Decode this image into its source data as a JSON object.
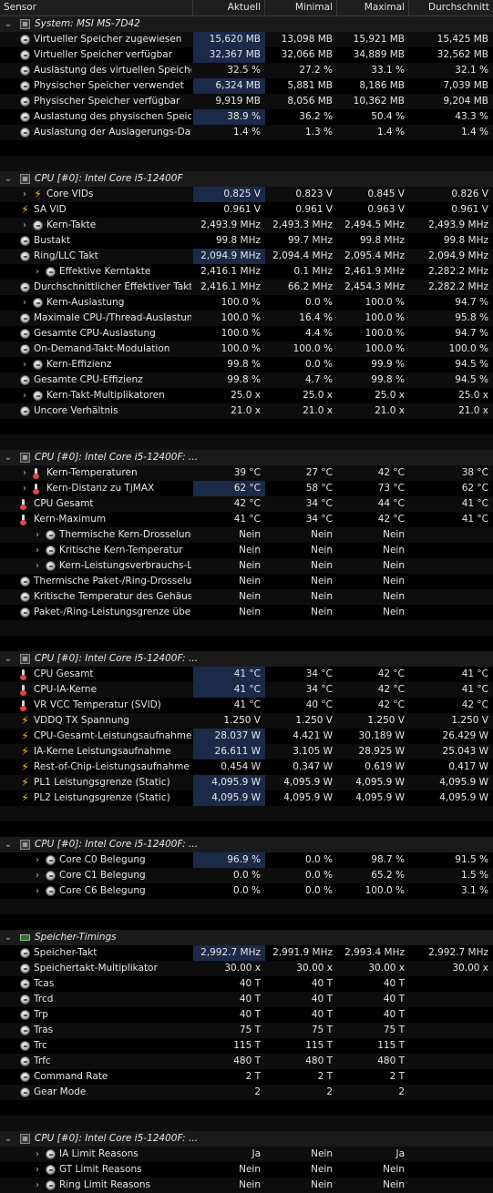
{
  "headers": [
    "Sensor",
    "Aktuell",
    "Minimal",
    "Maximal",
    "Durchschnitt"
  ],
  "rows": [
    {
      "t": "group",
      "name": "System: MSI MS-7D42",
      "icon": "chip"
    },
    {
      "t": "item",
      "name": "Virtueller Speicher zugewiesen",
      "icon": "circle",
      "d": 0,
      "v": [
        "15,620 MB",
        "13,098 MB",
        "15,921 MB",
        "15,425 MB"
      ],
      "hl": true
    },
    {
      "t": "item",
      "name": "Virtueller Speicher verfügbar",
      "icon": "circle",
      "d": 0,
      "v": [
        "32,367 MB",
        "32,066 MB",
        "34,889 MB",
        "32,562 MB"
      ],
      "hl": true
    },
    {
      "t": "item",
      "name": "Auslastung des virtuellen Speichers",
      "icon": "circle",
      "d": 0,
      "v": [
        "32.5 %",
        "27.2 %",
        "33.1 %",
        "32.1 %"
      ]
    },
    {
      "t": "item",
      "name": "Physischer Speicher verwendet",
      "icon": "circle",
      "d": 0,
      "v": [
        "6,324 MB",
        "5,881 MB",
        "8,186 MB",
        "7,039 MB"
      ],
      "hl": true
    },
    {
      "t": "item",
      "name": "Physischer Speicher verfügbar",
      "icon": "circle",
      "d": 0,
      "v": [
        "9,919 MB",
        "8,056 MB",
        "10,362 MB",
        "9,204 MB"
      ]
    },
    {
      "t": "item",
      "name": "Auslastung des physischen Speic...",
      "icon": "circle",
      "d": 0,
      "v": [
        "38.9 %",
        "36.2 %",
        "50.4 %",
        "43.3 %"
      ],
      "hl": true
    },
    {
      "t": "item",
      "name": "Auslastung der Auslagerungs-Datei",
      "icon": "circle",
      "d": 0,
      "v": [
        "1.4 %",
        "1.3 %",
        "1.4 %",
        "1.4 %"
      ]
    },
    {
      "t": "blank"
    },
    {
      "t": "blank"
    },
    {
      "t": "group",
      "name": "CPU [#0]: Intel Core i5-12400F",
      "icon": "chip"
    },
    {
      "t": "item",
      "name": "Core VIDs",
      "icon": "bolt",
      "d": 0,
      "exp": true,
      "v": [
        "0.825 V",
        "0.823 V",
        "0.845 V",
        "0.826 V"
      ],
      "hl": true
    },
    {
      "t": "item",
      "name": "SA VID",
      "icon": "bolt",
      "d": 0,
      "v": [
        "0.961 V",
        "0.961 V",
        "0.963 V",
        "0.961 V"
      ]
    },
    {
      "t": "item",
      "name": "Kern-Takte",
      "icon": "circle",
      "d": 0,
      "exp": true,
      "v": [
        "2,493.9 MHz",
        "2,493.3 MHz",
        "2,494.5 MHz",
        "2,493.9 MHz"
      ]
    },
    {
      "t": "item",
      "name": "Bustakt",
      "icon": "circle",
      "d": 0,
      "v": [
        "99.8 MHz",
        "99.7 MHz",
        "99.8 MHz",
        "99.8 MHz"
      ]
    },
    {
      "t": "item",
      "name": "Ring/LLC Takt",
      "icon": "circle",
      "d": 0,
      "v": [
        "2,094.9 MHz",
        "2,094.4 MHz",
        "2,095.4 MHz",
        "2,094.9 MHz"
      ],
      "hl": true
    },
    {
      "t": "item",
      "name": "Effektive Kerntakte",
      "icon": "circle",
      "d": 1,
      "exp": true,
      "v": [
        "2,416.1 MHz",
        "0.1 MHz",
        "2,461.9 MHz",
        "2,282.2 MHz"
      ]
    },
    {
      "t": "item",
      "name": "Durchschnittlicher Effektiver Takt",
      "icon": "circle",
      "d": 0,
      "v": [
        "2,416.1 MHz",
        "66.2 MHz",
        "2,454.3 MHz",
        "2,282.2 MHz"
      ]
    },
    {
      "t": "item",
      "name": "Kern-Auslastung",
      "icon": "circle",
      "d": 0,
      "exp": true,
      "v": [
        "100.0 %",
        "0.0 %",
        "100.0 %",
        "94.7 %"
      ]
    },
    {
      "t": "item",
      "name": "Maximale CPU-/Thread-Auslastung",
      "icon": "circle",
      "d": 0,
      "v": [
        "100.0 %",
        "16.4 %",
        "100.0 %",
        "95.8 %"
      ]
    },
    {
      "t": "item",
      "name": "Gesamte CPU-Auslastung",
      "icon": "circle",
      "d": 0,
      "v": [
        "100.0 %",
        "4.4 %",
        "100.0 %",
        "94.7 %"
      ]
    },
    {
      "t": "item",
      "name": "On-Demand-Takt-Modulation",
      "icon": "circle",
      "d": 0,
      "v": [
        "100.0 %",
        "100.0 %",
        "100.0 %",
        "100.0 %"
      ]
    },
    {
      "t": "item",
      "name": "Kern-Effizienz",
      "icon": "circle",
      "d": 0,
      "exp": true,
      "v": [
        "99.8 %",
        "0.0 %",
        "99.9 %",
        "94.5 %"
      ]
    },
    {
      "t": "item",
      "name": "Gesamte CPU-Effizienz",
      "icon": "circle",
      "d": 0,
      "v": [
        "99.8 %",
        "4.7 %",
        "99.8 %",
        "94.5 %"
      ]
    },
    {
      "t": "item",
      "name": "Kern-Takt-Multiplikatoren",
      "icon": "circle",
      "d": 0,
      "exp": true,
      "v": [
        "25.0 x",
        "25.0 x",
        "25.0 x",
        "25.0 x"
      ]
    },
    {
      "t": "item",
      "name": "Uncore Verhältnis",
      "icon": "circle",
      "d": 0,
      "v": [
        "21.0 x",
        "21.0 x",
        "21.0 x",
        "21.0 x"
      ]
    },
    {
      "t": "blank"
    },
    {
      "t": "blank"
    },
    {
      "t": "group",
      "name": "CPU [#0]: Intel Core i5-12400F: ...",
      "icon": "chip"
    },
    {
      "t": "item",
      "name": "Kern-Temperaturen",
      "icon": "therm",
      "d": 0,
      "exp": true,
      "v": [
        "39 °C",
        "27 °C",
        "42 °C",
        "38 °C"
      ]
    },
    {
      "t": "item",
      "name": "Kern-Distanz zu TjMAX",
      "icon": "therm",
      "d": 0,
      "exp": true,
      "v": [
        "62 °C",
        "58 °C",
        "73 °C",
        "62 °C"
      ],
      "hl": true
    },
    {
      "t": "item",
      "name": "CPU Gesamt",
      "icon": "therm",
      "d": 0,
      "v": [
        "42 °C",
        "34 °C",
        "44 °C",
        "41 °C"
      ]
    },
    {
      "t": "item",
      "name": "Kern-Maximum",
      "icon": "therm",
      "d": 0,
      "v": [
        "41 °C",
        "34 °C",
        "42 °C",
        "41 °C"
      ]
    },
    {
      "t": "item",
      "name": "Thermische Kern-Drosselung",
      "icon": "circle",
      "d": 1,
      "exp": true,
      "v": [
        "Nein",
        "Nein",
        "Nein",
        ""
      ]
    },
    {
      "t": "item",
      "name": "Kritische Kern-Temperatur",
      "icon": "circle",
      "d": 1,
      "exp": true,
      "v": [
        "Nein",
        "Nein",
        "Nein",
        ""
      ]
    },
    {
      "t": "item",
      "name": "Kern-Leistungsverbrauchs-Li...",
      "icon": "circle",
      "d": 1,
      "exp": true,
      "v": [
        "Nein",
        "Nein",
        "Nein",
        ""
      ]
    },
    {
      "t": "item",
      "name": "Thermische Paket-/Ring-Drosselung",
      "icon": "circle",
      "d": 0,
      "v": [
        "Nein",
        "Nein",
        "Nein",
        ""
      ]
    },
    {
      "t": "item",
      "name": "Kritische Temperatur des Gehäus...",
      "icon": "circle",
      "d": 0,
      "v": [
        "Nein",
        "Nein",
        "Nein",
        ""
      ]
    },
    {
      "t": "item",
      "name": "Paket-/Ring-Leistungsgrenze übe...",
      "icon": "circle",
      "d": 0,
      "v": [
        "Nein",
        "Nein",
        "Nein",
        ""
      ]
    },
    {
      "t": "blank"
    },
    {
      "t": "blank"
    },
    {
      "t": "group",
      "name": "CPU [#0]: Intel Core i5-12400F: ...",
      "icon": "chip"
    },
    {
      "t": "item",
      "name": "CPU Gesamt",
      "icon": "therm",
      "d": 0,
      "v": [
        "41 °C",
        "34 °C",
        "42 °C",
        "41 °C"
      ],
      "hl": true
    },
    {
      "t": "item",
      "name": "CPU-IA-Kerne",
      "icon": "therm",
      "d": 0,
      "v": [
        "41 °C",
        "34 °C",
        "42 °C",
        "41 °C"
      ],
      "hl": true
    },
    {
      "t": "item",
      "name": "VR VCC Temperatur (SVID)",
      "icon": "therm",
      "d": 0,
      "v": [
        "41 °C",
        "40 °C",
        "42 °C",
        "42 °C"
      ]
    },
    {
      "t": "item",
      "name": "VDDQ TX Spannung",
      "icon": "bolt",
      "d": 0,
      "v": [
        "1.250 V",
        "1.250 V",
        "1.250 V",
        "1.250 V"
      ]
    },
    {
      "t": "item",
      "name": "CPU-Gesamt-Leistungsaufnahme",
      "icon": "bolt",
      "d": 0,
      "v": [
        "28.037 W",
        "4.421 W",
        "30.189 W",
        "26.429 W"
      ],
      "hl": true
    },
    {
      "t": "item",
      "name": "IA-Kerne Leistungsaufnahme",
      "icon": "bolt",
      "d": 0,
      "v": [
        "26.611 W",
        "3.105 W",
        "28.925 W",
        "25.043 W"
      ],
      "hl": true
    },
    {
      "t": "item",
      "name": "Rest-of-Chip-Leistungsaufnahme",
      "icon": "bolt",
      "d": 0,
      "v": [
        "0.454 W",
        "0.347 W",
        "0.619 W",
        "0.417 W"
      ]
    },
    {
      "t": "item",
      "name": "PL1 Leistungsgrenze (Static)",
      "icon": "bolt",
      "d": 0,
      "v": [
        "4,095.9 W",
        "4,095.9 W",
        "4,095.9 W",
        "4,095.9 W"
      ],
      "hl": true
    },
    {
      "t": "item",
      "name": "PL2 Leistungsgrenze (Static)",
      "icon": "bolt",
      "d": 0,
      "v": [
        "4,095.9 W",
        "4,095.9 W",
        "4,095.9 W",
        "4,095.9 W"
      ],
      "hl": true
    },
    {
      "t": "blank"
    },
    {
      "t": "blank"
    },
    {
      "t": "group",
      "name": "CPU [#0]: Intel Core i5-12400F: ...",
      "icon": "chip"
    },
    {
      "t": "item",
      "name": "Core C0 Belegung",
      "icon": "circle",
      "d": 1,
      "exp": true,
      "v": [
        "96.9 %",
        "0.0 %",
        "98.7 %",
        "91.5 %"
      ],
      "hl": true
    },
    {
      "t": "item",
      "name": "Core C1 Belegung",
      "icon": "circle",
      "d": 1,
      "exp": true,
      "v": [
        "0.0 %",
        "0.0 %",
        "65.2 %",
        "1.5 %"
      ]
    },
    {
      "t": "item",
      "name": "Core C6 Belegung",
      "icon": "circle",
      "d": 1,
      "exp": true,
      "v": [
        "0.0 %",
        "0.0 %",
        "100.0 %",
        "3.1 %"
      ]
    },
    {
      "t": "blank"
    },
    {
      "t": "blank"
    },
    {
      "t": "group",
      "name": "Speicher-Timings",
      "icon": "ram"
    },
    {
      "t": "item",
      "name": "Speicher-Takt",
      "icon": "circle",
      "d": 0,
      "v": [
        "2,992.7 MHz",
        "2,991.9 MHz",
        "2,993.4 MHz",
        "2,992.7 MHz"
      ],
      "hl": true
    },
    {
      "t": "item",
      "name": "Speichertakt-Multiplikator",
      "icon": "circle",
      "d": 0,
      "v": [
        "30.00 x",
        "30.00 x",
        "30.00 x",
        "30.00 x"
      ]
    },
    {
      "t": "item",
      "name": "Tcas",
      "icon": "circle",
      "d": 0,
      "v": [
        "40 T",
        "40 T",
        "40 T",
        ""
      ]
    },
    {
      "t": "item",
      "name": "Trcd",
      "icon": "circle",
      "d": 0,
      "v": [
        "40 T",
        "40 T",
        "40 T",
        ""
      ]
    },
    {
      "t": "item",
      "name": "Trp",
      "icon": "circle",
      "d": 0,
      "v": [
        "40 T",
        "40 T",
        "40 T",
        ""
      ]
    },
    {
      "t": "item",
      "name": "Tras",
      "icon": "circle",
      "d": 0,
      "v": [
        "75 T",
        "75 T",
        "75 T",
        ""
      ]
    },
    {
      "t": "item",
      "name": "Trc",
      "icon": "circle",
      "d": 0,
      "v": [
        "115 T",
        "115 T",
        "115 T",
        ""
      ]
    },
    {
      "t": "item",
      "name": "Trfc",
      "icon": "circle",
      "d": 0,
      "v": [
        "480 T",
        "480 T",
        "480 T",
        ""
      ]
    },
    {
      "t": "item",
      "name": "Command Rate",
      "icon": "circle",
      "d": 0,
      "v": [
        "2 T",
        "2 T",
        "2 T",
        ""
      ]
    },
    {
      "t": "item",
      "name": "Gear Mode",
      "icon": "circle",
      "d": 0,
      "v": [
        "2",
        "2",
        "2",
        ""
      ]
    },
    {
      "t": "blank"
    },
    {
      "t": "blank"
    },
    {
      "t": "group",
      "name": "CPU [#0]: Intel Core i5-12400F: ...",
      "icon": "chip"
    },
    {
      "t": "item",
      "name": "IA Limit Reasons",
      "icon": "circle",
      "d": 1,
      "exp": true,
      "v": [
        "Ja",
        "Nein",
        "Ja",
        ""
      ]
    },
    {
      "t": "item",
      "name": "GT Limit Reasons",
      "icon": "circle",
      "d": 1,
      "exp": true,
      "v": [
        "Nein",
        "Nein",
        "Nein",
        ""
      ]
    },
    {
      "t": "item",
      "name": "Ring Limit Reasons",
      "icon": "circle",
      "d": 1,
      "exp": true,
      "v": [
        "Nein",
        "Nein",
        "Nein",
        ""
      ]
    }
  ]
}
